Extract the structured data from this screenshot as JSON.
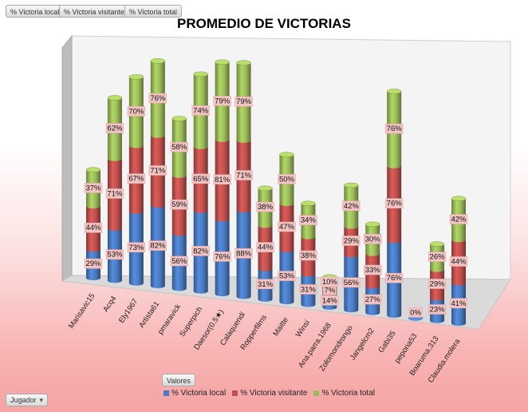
{
  "pivot_fields": {
    "values": [
      "% Victoria local",
      "% Victoria visitante",
      "% Victoria total"
    ],
    "axis_label": "Valores",
    "row_field": "Jugador",
    "filter_icon": "filter-icon"
  },
  "colors": {
    "local": "#4a7bc2",
    "visitante": "#c0504d",
    "total": "#9bbb59"
  },
  "chart_data": {
    "type": "bar",
    "stacked": true,
    "three_d": true,
    "title": "PROMEDIO DE VICTORIAS",
    "categories": [
      "Marisavic15",
      "Acq4",
      "Ely1967",
      "Artista61",
      "pmaravick",
      "Superpich",
      "Daesor(0.5★)",
      "Calaquendi",
      "Ropperfilms",
      "Maitte",
      "Winsi",
      "Ana.parra.1968",
      "Zolomondrongo",
      "Jangelcm2",
      "Gabi35",
      "pepona53",
      "Boaruma.313",
      "Claudia.molera"
    ],
    "series": [
      {
        "name": "% Victoria local",
        "values": [
          0.29,
          0.53,
          0.73,
          0.82,
          0.56,
          0.82,
          0.76,
          0.88,
          0.31,
          0.53,
          0.31,
          0.14,
          0.56,
          0.27,
          0.76,
          0.0,
          0.23,
          0.41
        ]
      },
      {
        "name": "% Victoria visitante",
        "values": [
          0.44,
          0.71,
          0.67,
          0.71,
          0.59,
          0.65,
          0.81,
          0.71,
          0.44,
          0.47,
          0.38,
          0.07,
          0.29,
          0.33,
          0.76,
          null,
          0.29,
          0.44
        ]
      },
      {
        "name": "% Victoria total",
        "values": [
          0.37,
          0.62,
          0.7,
          0.76,
          0.58,
          0.74,
          0.79,
          0.79,
          0.38,
          0.5,
          0.34,
          0.1,
          0.42,
          0.3,
          0.76,
          null,
          0.26,
          0.42
        ]
      }
    ],
    "data_labels": [
      [
        "29%",
        "53%",
        "73%",
        "82%",
        "56%",
        "82%",
        "76%",
        "88%",
        "31%",
        "53%",
        "31%",
        "14%",
        "56%",
        "27%",
        "76%",
        "0%",
        "23%",
        "41%"
      ],
      [
        "44%",
        "71%",
        "67%",
        "71%",
        "59%",
        "65%",
        "81%",
        "71%",
        "44%",
        "47%",
        "38%",
        "7%",
        "29%",
        "33%",
        "76%",
        "",
        "29%",
        "44%"
      ],
      [
        "37%",
        "62%",
        "70%",
        "76%",
        "58%",
        "74%",
        "79%",
        "79%",
        "38%",
        "50%",
        "34%",
        "10%",
        "42%",
        "30%",
        "76%",
        "",
        "26%",
        "42%"
      ]
    ],
    "legend_position": "bottom",
    "grid": false
  }
}
